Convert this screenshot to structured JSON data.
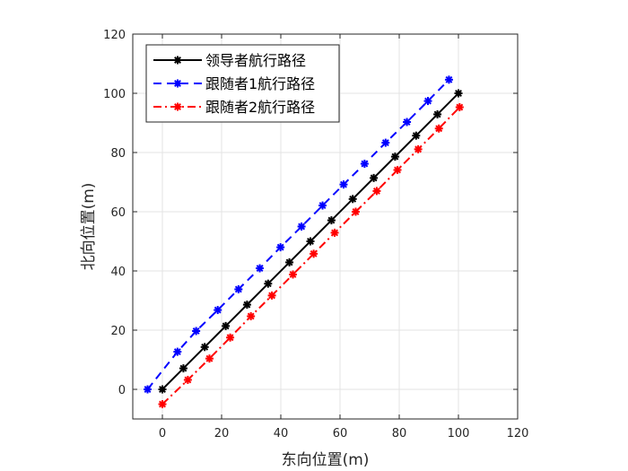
{
  "chart_data": {
    "type": "line",
    "xlabel": "东向位置(m)",
    "ylabel": "北向位置(m)",
    "xlim": [
      -10,
      120
    ],
    "ylim": [
      -10,
      120
    ],
    "xticks": [
      0,
      20,
      40,
      60,
      80,
      100,
      120
    ],
    "yticks": [
      0,
      20,
      40,
      60,
      80,
      100,
      120
    ],
    "grid": true,
    "legend_position": "top-left",
    "series": [
      {
        "name": "领导者航行路径",
        "color": "#000000",
        "line_style": "solid",
        "marker": "asterisk",
        "x": [
          0,
          7.1,
          14.3,
          21.4,
          28.6,
          35.7,
          42.9,
          50.0,
          57.1,
          64.3,
          71.4,
          78.6,
          85.7,
          92.9,
          100.0
        ],
        "y": [
          0,
          7.1,
          14.3,
          21.4,
          28.6,
          35.7,
          42.9,
          50.0,
          57.1,
          64.3,
          71.4,
          78.6,
          85.7,
          92.9,
          100.0
        ]
      },
      {
        "name": "跟随者1航行路径",
        "color": "#0000ff",
        "line_style": "dashed",
        "marker": "asterisk",
        "x": [
          -5.0,
          5.1,
          11.4,
          18.7,
          25.7,
          32.9,
          39.9,
          47.0,
          54.1,
          61.2,
          68.3,
          75.4,
          82.6,
          89.7,
          96.8
        ],
        "y": [
          0,
          12.7,
          19.7,
          26.8,
          33.8,
          40.9,
          48.0,
          55.0,
          62.1,
          69.2,
          76.2,
          83.3,
          90.3,
          97.4,
          104.6
        ]
      },
      {
        "name": "跟随者2航行路径",
        "color": "#ff0000",
        "line_style": "dashdot",
        "marker": "asterisk",
        "x": [
          0,
          8.6,
          15.9,
          22.9,
          29.9,
          37.0,
          44.1,
          51.1,
          58.2,
          65.3,
          72.4,
          79.4,
          86.4,
          93.4,
          100.4
        ],
        "y": [
          -5.0,
          3.2,
          10.4,
          17.5,
          24.7,
          31.7,
          38.8,
          45.8,
          52.9,
          60.0,
          67.0,
          74.1,
          81.1,
          88.1,
          95.3
        ]
      }
    ]
  }
}
